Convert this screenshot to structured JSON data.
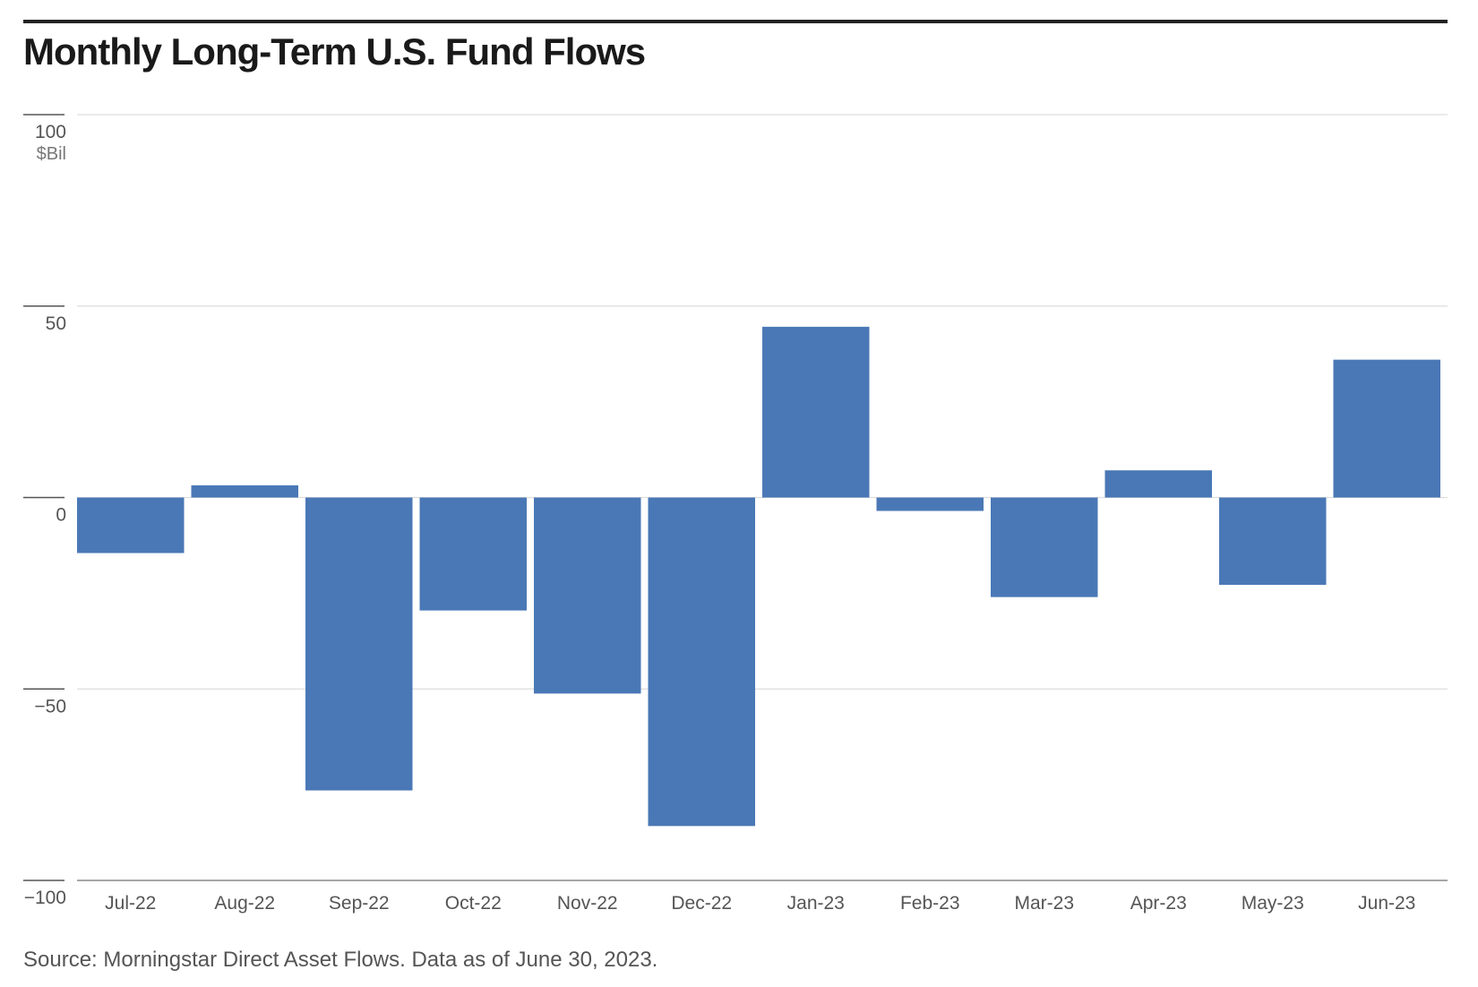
{
  "title": "Monthly Long-Term U.S. Fund Flows",
  "source": "Source: Morningstar Direct Asset Flows. Data as of June 30, 2023.",
  "colors": {
    "bar": "#4a78b6",
    "grid": "#dddddd",
    "axis": "#555555",
    "tick_text": "#555555"
  },
  "chart_data": {
    "type": "bar",
    "title": "Monthly Long-Term U.S. Fund Flows",
    "ylabel": "$Bil",
    "ylim": [
      -100,
      100
    ],
    "yticks": [
      100,
      50,
      0,
      -50,
      -100
    ],
    "ytick_labels": [
      "100",
      "50",
      "0",
      "−50",
      "−100"
    ],
    "yunit": "$Bil",
    "grid": true,
    "categories": [
      "Jul-22",
      "Aug-22",
      "Sep-22",
      "Oct-22",
      "Nov-22",
      "Dec-22",
      "Jan-23",
      "Feb-23",
      "Mar-23",
      "Apr-23",
      "May-23",
      "Jun-23"
    ],
    "values": [
      -14.5,
      3.2,
      -76.5,
      -29.5,
      -51.2,
      -85.8,
      44.6,
      -3.5,
      -26,
      7.1,
      -22.8,
      36
    ]
  }
}
